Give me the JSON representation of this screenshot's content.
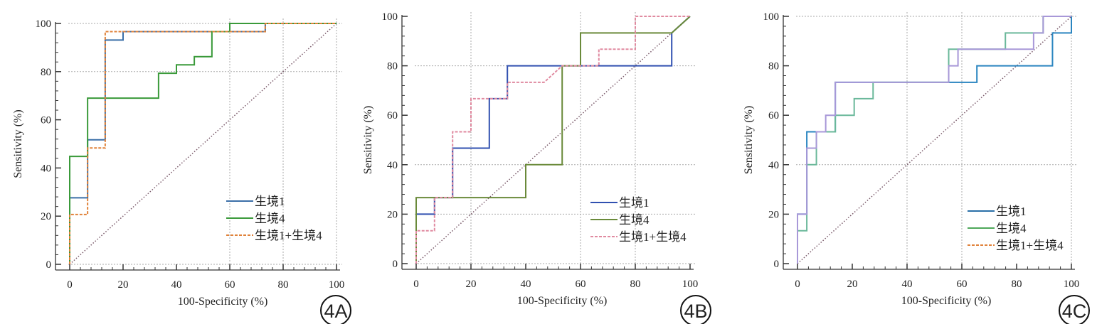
{
  "chart_data": [
    {
      "type": "line",
      "panel_label": "4A",
      "xlabel": "100-Specificity (%)",
      "ylabel": "Sensitivity (%)",
      "xlim": [
        0,
        100
      ],
      "ylim": [
        0,
        100
      ],
      "xticks": [
        "0",
        "20",
        "40",
        "60",
        "80",
        "100"
      ],
      "yticks": [
        "0",
        "20",
        "40",
        "60",
        "80",
        "100"
      ],
      "grid_x": [
        60,
        80,
        100
      ],
      "grid_y": [
        0,
        80,
        100
      ],
      "legend_position": "bottom-right",
      "series": [
        {
          "name": "生境1",
          "color": "#3b6fa8",
          "dash": "solid",
          "x": [
            0,
            0,
            6.7,
            6.7,
            13.3,
            13.3,
            20,
            20,
            73.3,
            73.3,
            100
          ],
          "y": [
            0,
            27.6,
            27.6,
            51.7,
            51.7,
            93.1,
            93.1,
            96.6,
            96.6,
            100,
            100
          ]
        },
        {
          "name": "生境4",
          "color": "#3a9a3a",
          "dash": "solid",
          "x": [
            0,
            0,
            6.7,
            6.7,
            33.3,
            33.3,
            40,
            40,
            46.7,
            46.7,
            53.3,
            53.3,
            60,
            60,
            100
          ],
          "y": [
            0,
            44.8,
            44.8,
            69,
            69,
            79.3,
            79.3,
            82.8,
            82.8,
            86.2,
            86.2,
            96.6,
            96.6,
            100,
            100
          ]
        },
        {
          "name": "生境1+生境4",
          "color": "#e0823a",
          "dash": "dashed",
          "x": [
            0,
            0,
            6.7,
            6.7,
            13.3,
            13.3,
            73.3,
            73.3,
            100
          ],
          "y": [
            0,
            20.7,
            20.7,
            48.3,
            48.3,
            96.6,
            96.6,
            100,
            100
          ]
        }
      ],
      "reference": {
        "x": [
          0,
          100
        ],
        "y": [
          0,
          100
        ],
        "color": "#7a5a6a"
      }
    },
    {
      "type": "line",
      "panel_label": "4B",
      "xlabel": "100-Specificity (%)",
      "ylabel": "Sensitivity (%)",
      "xlim": [
        0,
        100
      ],
      "ylim": [
        0,
        100
      ],
      "xticks": [
        "0",
        "20",
        "40",
        "60",
        "80",
        "100"
      ],
      "yticks": [
        "0",
        "20",
        "40",
        "60",
        "80",
        "100"
      ],
      "grid_x": [
        20,
        60,
        80
      ],
      "grid_y": [
        0,
        20,
        40,
        80
      ],
      "legend_position": "bottom-right",
      "series": [
        {
          "name": "生境1",
          "color": "#3050b0",
          "dash": "solid",
          "x": [
            0,
            0,
            6.7,
            6.7,
            13.3,
            13.3,
            26.7,
            26.7,
            33.3,
            33.3,
            93.3,
            93.3,
            100
          ],
          "y": [
            0,
            20,
            20,
            26.7,
            26.7,
            46.7,
            46.7,
            66.7,
            66.7,
            80,
            80,
            93.3,
            100
          ]
        },
        {
          "name": "生境4",
          "color": "#6a8a3a",
          "dash": "solid",
          "x": [
            0,
            0,
            40,
            40,
            53.3,
            53.3,
            60,
            60,
            93.3,
            100
          ],
          "y": [
            0,
            26.7,
            26.7,
            40,
            40,
            80,
            80,
            93.3,
            93.3,
            100
          ]
        },
        {
          "name": "生境1+生境4",
          "color": "#e08aa0",
          "dash": "dashed",
          "x": [
            0,
            0,
            6.7,
            6.7,
            13.3,
            13.3,
            20,
            20,
            33.3,
            33.3,
            46.7,
            53.3,
            66.7,
            66.7,
            80,
            80,
            100
          ],
          "y": [
            0,
            13.3,
            13.3,
            26.7,
            26.7,
            53.3,
            53.3,
            66.7,
            66.7,
            73.3,
            73.3,
            80,
            80,
            86.7,
            86.7,
            100,
            100
          ]
        }
      ],
      "reference": {
        "x": [
          0,
          100
        ],
        "y": [
          0,
          100
        ],
        "color": "#7a5a6a"
      }
    },
    {
      "type": "line",
      "panel_label": "4C",
      "xlabel": "100-Specificity (%)",
      "ylabel": "Sensitivity (%)",
      "xlim": [
        0,
        100
      ],
      "ylim": [
        0,
        100
      ],
      "xticks": [
        "0",
        "20",
        "40",
        "60",
        "80",
        "100"
      ],
      "yticks": [
        "0",
        "20",
        "40",
        "60",
        "80",
        "100"
      ],
      "grid_x": [
        40,
        60,
        100
      ],
      "grid_y": [
        40,
        100
      ],
      "legend_position": "bottom-right",
      "series": [
        {
          "name": "生境1",
          "color": "#2a85c0",
          "dash": "solid",
          "x": [
            0,
            0,
            3.4,
            3.4,
            13.8,
            13.8,
            55.2,
            55.2,
            65.5,
            65.5,
            93.1,
            93.1,
            100,
            100
          ],
          "y": [
            0,
            20,
            20,
            53.3,
            53.3,
            73.3,
            73.3,
            73.3,
            73.3,
            80,
            80,
            93.3,
            93.3,
            100
          ]
        },
        {
          "name": "生境4",
          "color": "#6ab89a",
          "dash": "solid",
          "x": [
            0,
            0,
            3.4,
            3.4,
            6.9,
            6.9,
            13.8,
            13.8,
            20.7,
            20.7,
            27.6,
            27.6,
            55.2,
            55.2,
            75.9,
            75.9,
            89.7,
            89.7,
            100
          ],
          "y": [
            0,
            13.3,
            13.3,
            40,
            40,
            53.3,
            53.3,
            60,
            60,
            66.7,
            66.7,
            73.3,
            73.3,
            86.7,
            86.7,
            93.3,
            93.3,
            100,
            100
          ]
        },
        {
          "name": "生境1+生境4",
          "color": "#a898d8",
          "dash": "solid",
          "x": [
            0,
            0,
            3.4,
            3.4,
            6.9,
            6.9,
            10.3,
            10.3,
            13.8,
            13.8,
            55.2,
            55.2,
            58.6,
            58.6,
            86.2,
            86.2,
            89.7,
            89.7,
            100
          ],
          "y": [
            0,
            20,
            20,
            46.7,
            46.7,
            53.3,
            53.3,
            60,
            60,
            73.3,
            73.3,
            80,
            80,
            86.7,
            86.7,
            93.3,
            93.3,
            100,
            100
          ]
        }
      ],
      "legend_colors": [
        "#2a6fa8",
        "#4ea85a",
        "#e0823a"
      ],
      "reference": {
        "x": [
          0,
          100
        ],
        "y": [
          0,
          100
        ],
        "color": "#7a5a6a"
      }
    }
  ]
}
